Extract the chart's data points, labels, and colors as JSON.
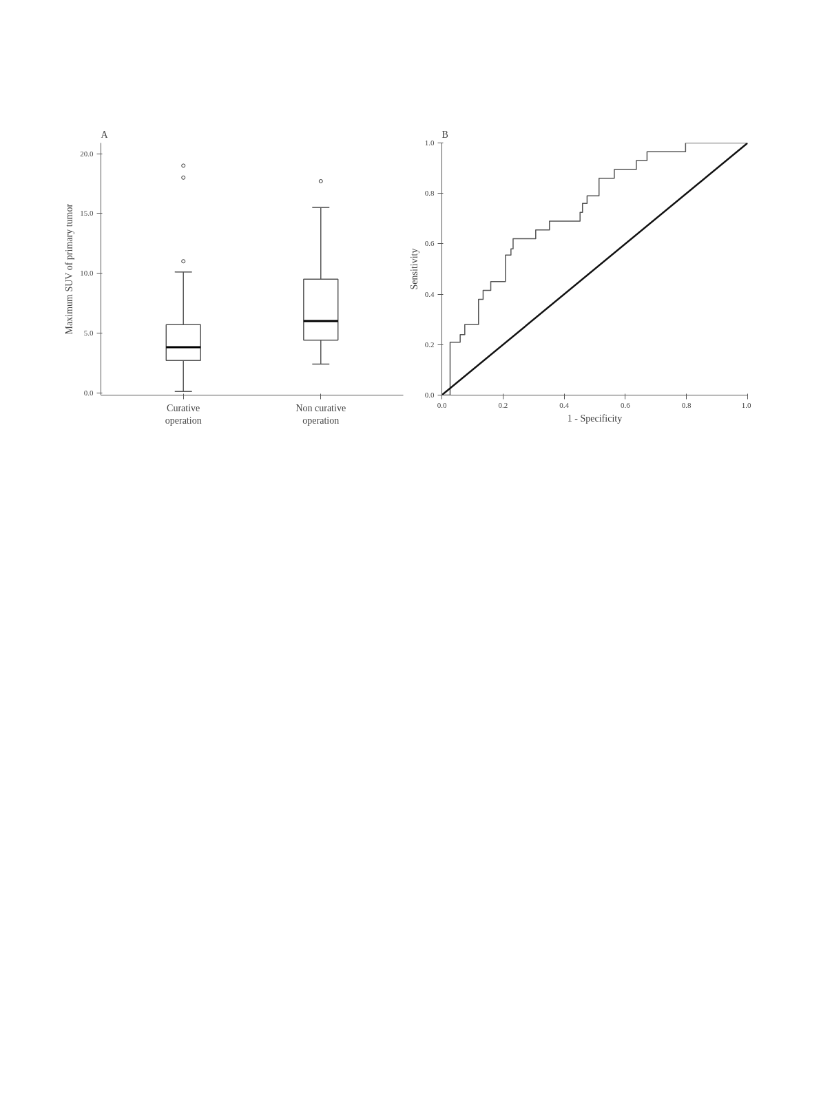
{
  "chart_data": [
    {
      "type": "box",
      "title": "A",
      "ylabel": "Maximum SUV of primary tumor",
      "categories": [
        "Curative\noperation",
        "Non curative\noperation"
      ],
      "boxes": [
        {
          "low": 0.1,
          "q1": 2.7,
          "median": 3.8,
          "q3": 5.7,
          "high": 10.1,
          "outliers": [
            11.0,
            18.0,
            19.0
          ]
        },
        {
          "low": 2.4,
          "q1": 4.4,
          "median": 6.0,
          "q3": 9.5,
          "high": 15.5,
          "outliers": [
            17.7
          ]
        }
      ],
      "ylim": [
        -0.2,
        20.9
      ],
      "yticks": [
        {
          "value": 0,
          "label": "0.0"
        },
        {
          "value": 5,
          "label": "5.0"
        },
        {
          "value": 10,
          "label": "10.0"
        },
        {
          "value": 15,
          "label": "15.0"
        },
        {
          "value": 20,
          "label": "20.0"
        }
      ],
      "grid": false
    },
    {
      "type": "line",
      "title": "B",
      "xlabel": "1 - Specificity",
      "ylabel": "Sensitivity",
      "series": [
        {
          "color": "#555555",
          "x": [
            0,
            0.027,
            0.027,
            0.06,
            0.06,
            0.075,
            0.075,
            0.12,
            0.12,
            0.135,
            0.135,
            0.16,
            0.16,
            0.208,
            0.208,
            0.226,
            0.226,
            0.233,
            0.233,
            0.307,
            0.307,
            0.352,
            0.352,
            0.452,
            0.452,
            0.46,
            0.46,
            0.475,
            0.475,
            0.514,
            0.514,
            0.564,
            0.564,
            0.636,
            0.636,
            0.671,
            0.671,
            0.797,
            0.797,
            1.0
          ],
          "values": [
            0,
            0,
            0.21,
            0.21,
            0.24,
            0.24,
            0.28,
            0.28,
            0.38,
            0.38,
            0.415,
            0.415,
            0.45,
            0.45,
            0.555,
            0.555,
            0.58,
            0.58,
            0.62,
            0.62,
            0.655,
            0.655,
            0.69,
            0.69,
            0.725,
            0.725,
            0.76,
            0.76,
            0.79,
            0.79,
            0.86,
            0.86,
            0.895,
            0.895,
            0.93,
            0.93,
            0.965,
            0.965,
            1.0,
            1.0
          ]
        },
        {
          "color": "#111111",
          "x": [
            0,
            1.0
          ],
          "values": [
            0,
            1.0
          ]
        }
      ],
      "xlim": [
        0,
        1.0
      ],
      "ylim": [
        0,
        1.0
      ],
      "xticks": [
        {
          "value": 0,
          "label": "0.0"
        },
        {
          "value": 0.2,
          "label": "0.2"
        },
        {
          "value": 0.4,
          "label": "0.4"
        },
        {
          "value": 0.6,
          "label": "0.6"
        },
        {
          "value": 0.8,
          "label": "0.8"
        },
        {
          "value": 1.0,
          "label": "1.0"
        }
      ],
      "yticks": [
        {
          "value": 0,
          "label": "0.0"
        },
        {
          "value": 0.2,
          "label": "0.2"
        },
        {
          "value": 0.4,
          "label": "0.4"
        },
        {
          "value": 0.6,
          "label": "0.6"
        },
        {
          "value": 0.8,
          "label": "0.8"
        },
        {
          "value": 1.0,
          "label": "1.0"
        }
      ],
      "grid": false
    }
  ]
}
